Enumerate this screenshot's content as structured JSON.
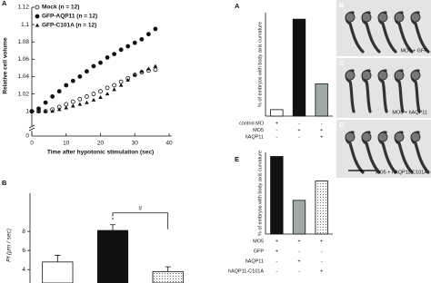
{
  "chart_data": [
    {
      "type": "scatter",
      "title": "A",
      "xlabel": "Time after hypotonic stimulation (sec)",
      "ylabel": "Relative cell volume",
      "x": [
        0,
        2,
        4,
        6,
        8,
        10,
        12,
        14,
        16,
        18,
        20,
        22,
        24,
        26,
        28,
        30,
        32,
        34,
        36
      ],
      "series": [
        {
          "name": "Mock (n = 12)",
          "color": "#111111",
          "marker": "open-circle",
          "values": [
            1,
            1,
            1,
            1.002,
            1.005,
            1.008,
            1.011,
            1.014,
            1.017,
            1.02,
            1.023,
            1.027,
            1.03,
            1.034,
            1.038,
            1.042,
            1.045,
            1.047,
            1.048
          ]
        },
        {
          "name": "GFP-AQP11 (n = 12)",
          "color": "#111111",
          "marker": "circle",
          "values": [
            1,
            1.003,
            1.01,
            1.017,
            1.023,
            1.03,
            1.035,
            1.04,
            1.046,
            1.052,
            1.056,
            1.062,
            1.066,
            1.071,
            1.075,
            1.079,
            1.083,
            1.089,
            1.095
          ]
        },
        {
          "name": "GFP-C101A (n = 12)",
          "color": "#111111",
          "marker": "triangle",
          "values": [
            1,
            1,
            1,
            1,
            1.002,
            1.004,
            1.006,
            1.008,
            1.01,
            1.013,
            1.016,
            1.02,
            1.025,
            1.03,
            1.036,
            1.042,
            1.046,
            1.049,
            1.052
          ]
        }
      ],
      "xlim": [
        0,
        40
      ],
      "xticks": [
        0,
        10,
        20,
        30,
        40
      ],
      "ylim": [
        0.985,
        1.12
      ],
      "yticks": [
        1,
        1.02,
        1.04,
        1.06,
        1.08,
        1.1,
        1.12
      ],
      "y_break_tick": 0
    },
    {
      "type": "bar",
      "title": "B",
      "ylabel": "Pf (μm / sec)",
      "categories": [
        null,
        null,
        null
      ],
      "values": [
        4.8,
        8.1,
        3.8
      ],
      "errors": [
        0.7,
        0.6,
        0.5
      ],
      "colors": [
        "#ffffff",
        "#111111",
        "#f2f2f2"
      ],
      "dotted": [
        false,
        false,
        true
      ],
      "ylim": [
        2.6,
        12
      ],
      "yticks": [
        4,
        6,
        8
      ],
      "annotations": [
        "*",
        "#"
      ]
    },
    {
      "type": "bar",
      "title": "A",
      "ylabel": "% of embryos with body axis curvature",
      "categories": [
        null,
        null,
        null
      ],
      "values": [
        5,
        75,
        25
      ],
      "colors": [
        "#ffffff",
        "#111111",
        "#9eaaa8"
      ],
      "dotted": [
        false,
        false,
        false
      ],
      "ylim": [
        0,
        80
      ],
      "conditions": [
        {
          "label": "control MO",
          "marks": [
            "+",
            "-",
            "-"
          ]
        },
        {
          "label": "MO5",
          "marks": [
            "-",
            "+",
            "+"
          ]
        },
        {
          "label": "hAQP11",
          "marks": [
            "-",
            "-",
            "+"
          ]
        }
      ]
    },
    {
      "type": "bar",
      "title": "E",
      "ylabel": "% of embryos with body axis curvature",
      "categories": [
        null,
        null,
        null
      ],
      "values": [
        76,
        33,
        52
      ],
      "colors": [
        "#111111",
        "#9eaaa8",
        "#f2f2f2"
      ],
      "dotted": [
        false,
        false,
        true
      ],
      "ylim": [
        0,
        80
      ],
      "conditions": [
        {
          "label": "MO5",
          "marks": [
            "+",
            "+",
            "+"
          ]
        },
        {
          "label": "GFP",
          "marks": [
            "+",
            "-",
            "-"
          ]
        },
        {
          "label": "hAQP11",
          "marks": [
            "-",
            "+",
            "-"
          ]
        },
        {
          "label": "hAQP11-C101A",
          "marks": [
            "-",
            "-",
            "+"
          ]
        }
      ]
    }
  ],
  "photo_panels": [
    {
      "label": "B",
      "caption": "MO5 + GFP"
    },
    {
      "label": "C",
      "caption": "MO5 + hAQP11"
    },
    {
      "label": "D",
      "caption": "MO5 + hAQP11-C101A"
    }
  ]
}
